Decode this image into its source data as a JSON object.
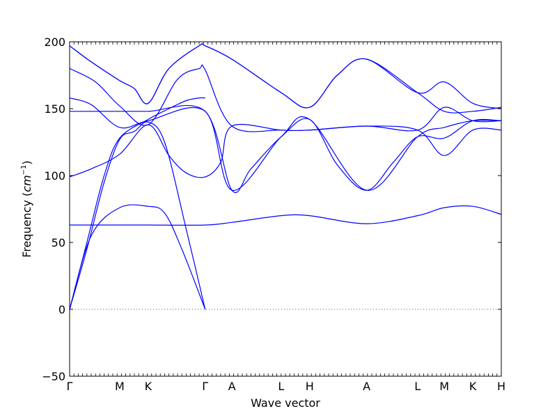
{
  "chart_data": {
    "type": "line",
    "title": "",
    "xlabel": "Wave vector",
    "ylabel_prefix": "Frequency (",
    "ylabel_unit_base": "cm",
    "ylabel_unit_exp": "−1",
    "ylabel_suffix": ")",
    "ylim": [
      -50,
      200
    ],
    "yticks": [
      -50,
      0,
      50,
      100,
      150,
      200
    ],
    "ytick_labels": [
      "−50",
      "0",
      "50",
      "100",
      "150",
      "200"
    ],
    "grid": false,
    "legend": "none",
    "line_color": "#0000ff",
    "high_symmetry_points": [
      {
        "label": "Γ",
        "x": 0.0
      },
      {
        "label": "M",
        "x": 0.116
      },
      {
        "label": "K",
        "x": 0.182
      },
      {
        "label": "Γ",
        "x": 0.314
      },
      {
        "label": "A",
        "x": 0.376
      },
      {
        "label": "L",
        "x": 0.49
      },
      {
        "label": "H",
        "x": 0.556
      },
      {
        "label": "A",
        "x": 0.688
      },
      {
        "label": "L",
        "x": 0.806
      },
      {
        "label": "M",
        "x": 0.868
      },
      {
        "label": "K",
        "x": 0.934
      },
      {
        "label": "H",
        "x": 1.0
      }
    ],
    "series": [
      {
        "values": [
          [
            0,
            0
          ],
          [
            0.05,
            55
          ],
          [
            0.116,
            76
          ],
          [
            0.182,
            77
          ],
          [
            0.22,
            72
          ],
          [
            0.26,
            45
          ],
          [
            0.314,
            0
          ]
        ]
      },
      {
        "values": [
          [
            0,
            0
          ],
          [
            0.04,
            45
          ],
          [
            0.08,
            95
          ],
          [
            0.116,
            127
          ],
          [
            0.15,
            133
          ],
          [
            0.182,
            140
          ],
          [
            0.22,
            125
          ],
          [
            0.27,
            60
          ],
          [
            0.314,
            0
          ]
        ]
      },
      {
        "values": [
          [
            0,
            0
          ],
          [
            0.04,
            50
          ],
          [
            0.08,
            100
          ],
          [
            0.116,
            128
          ],
          [
            0.182,
            142
          ],
          [
            0.23,
            150
          ],
          [
            0.27,
            156
          ],
          [
            0.3,
            158
          ],
          [
            0.314,
            158
          ]
        ]
      },
      {
        "values": [
          [
            0,
            63
          ],
          [
            0.116,
            63
          ],
          [
            0.182,
            63
          ],
          [
            0.314,
            63
          ],
          [
            0.376,
            65
          ],
          [
            0.49,
            70
          ],
          [
            0.556,
            70
          ],
          [
            0.688,
            64
          ],
          [
            0.806,
            70
          ],
          [
            0.868,
            76
          ],
          [
            0.934,
            77
          ],
          [
            1.0,
            71
          ]
        ]
      },
      {
        "values": [
          [
            0,
            99
          ],
          [
            0.05,
            105
          ],
          [
            0.116,
            116
          ],
          [
            0.182,
            138
          ],
          [
            0.23,
            115
          ],
          [
            0.27,
            102
          ],
          [
            0.314,
            99
          ],
          [
            0.35,
            110
          ],
          [
            0.376,
            137
          ],
          [
            0.49,
            134
          ],
          [
            0.556,
            134
          ],
          [
            0.688,
            137
          ],
          [
            0.806,
            134
          ],
          [
            0.868,
            151
          ],
          [
            0.934,
            141
          ],
          [
            1.0,
            141
          ]
        ]
      },
      {
        "values": [
          [
            0,
            148
          ],
          [
            0.116,
            148
          ],
          [
            0.182,
            148
          ],
          [
            0.314,
            148
          ],
          [
            0.376,
            89
          ],
          [
            0.42,
            105
          ],
          [
            0.49,
            129
          ],
          [
            0.556,
            142
          ],
          [
            0.62,
            108
          ],
          [
            0.688,
            89
          ],
          [
            0.75,
            110
          ],
          [
            0.806,
            129
          ],
          [
            0.868,
            128
          ],
          [
            0.934,
            141
          ],
          [
            1.0,
            141
          ]
        ]
      },
      {
        "values": [
          [
            0,
            158
          ],
          [
            0.05,
            153
          ],
          [
            0.116,
            136
          ],
          [
            0.182,
            141
          ],
          [
            0.314,
            148
          ],
          [
            0.376,
            89
          ],
          [
            0.49,
            129
          ],
          [
            0.556,
            142
          ],
          [
            0.688,
            89
          ],
          [
            0.806,
            129
          ],
          [
            0.868,
            136
          ],
          [
            0.934,
            141
          ],
          [
            1.0,
            141
          ]
        ]
      },
      {
        "values": [
          [
            0,
            180
          ],
          [
            0.06,
            170
          ],
          [
            0.116,
            152
          ],
          [
            0.182,
            138
          ],
          [
            0.25,
            172
          ],
          [
            0.3,
            180
          ],
          [
            0.314,
            179
          ],
          [
            0.376,
            137
          ],
          [
            0.49,
            134
          ],
          [
            0.556,
            134
          ],
          [
            0.688,
            137
          ],
          [
            0.806,
            134
          ],
          [
            0.868,
            115
          ],
          [
            0.934,
            134
          ],
          [
            1.0,
            134
          ]
        ]
      },
      {
        "values": [
          [
            0,
            197
          ],
          [
            0.05,
            185
          ],
          [
            0.116,
            171
          ],
          [
            0.15,
            165
          ],
          [
            0.182,
            154
          ],
          [
            0.23,
            180
          ],
          [
            0.3,
            197
          ],
          [
            0.314,
            197
          ],
          [
            0.376,
            187
          ],
          [
            0.49,
            162
          ],
          [
            0.556,
            151
          ],
          [
            0.62,
            175
          ],
          [
            0.688,
            187
          ],
          [
            0.806,
            162
          ],
          [
            0.868,
            148
          ],
          [
            0.934,
            148
          ],
          [
            1.0,
            151
          ]
        ]
      },
      {
        "values": [
          [
            0,
            197
          ],
          [
            0.05,
            185
          ],
          [
            0.116,
            171
          ],
          [
            0.15,
            165
          ],
          [
            0.182,
            154
          ],
          [
            0.23,
            180
          ],
          [
            0.3,
            197
          ],
          [
            0.314,
            197
          ],
          [
            0.376,
            187
          ],
          [
            0.49,
            162
          ],
          [
            0.556,
            151
          ],
          [
            0.62,
            175
          ],
          [
            0.688,
            187
          ],
          [
            0.806,
            162
          ],
          [
            0.868,
            170
          ],
          [
            0.934,
            154
          ],
          [
            1.0,
            150
          ]
        ]
      }
    ]
  }
}
